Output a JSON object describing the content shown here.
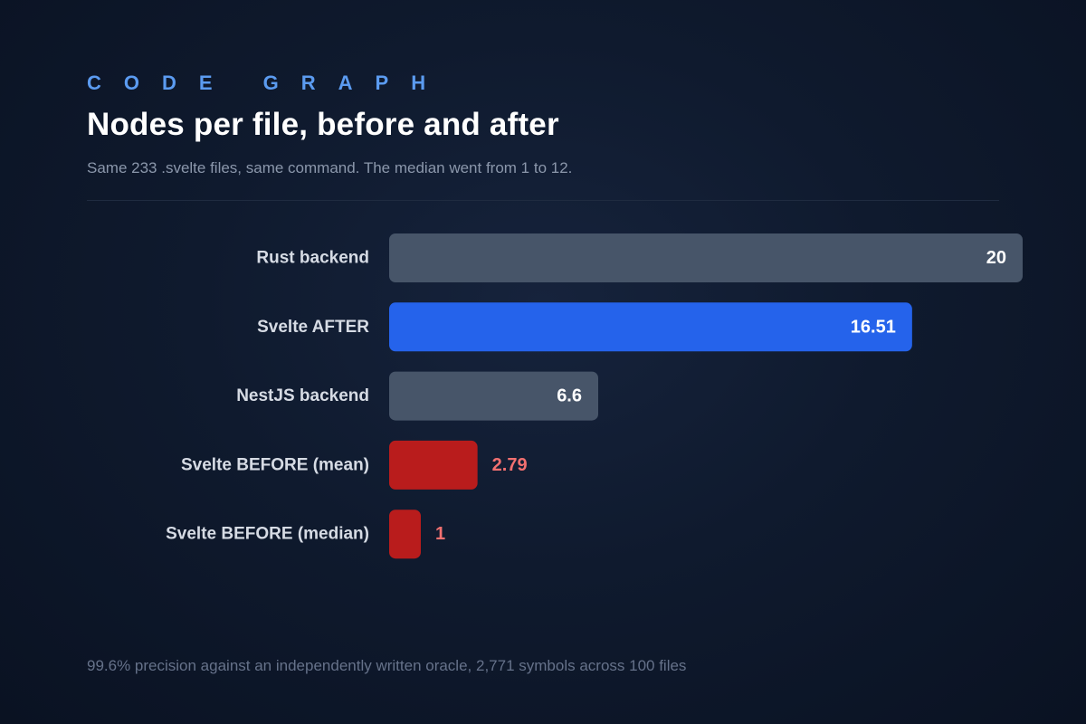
{
  "header": {
    "eyebrow": "CODE GRAPH",
    "title": "Nodes per file, before and after",
    "subtitle": "Same 233 .svelte files, same command. The median went from 1 to 12."
  },
  "footer": {
    "note": "99.6% precision against an independently written oracle, 2,771 symbols across 100 files"
  },
  "colors": {
    "neutral": "#475569",
    "highlight": "#2563eb",
    "before": "#b91c1c",
    "inside_label": "#ffffff",
    "outside_label": "#f27070",
    "category_label": "#d6dbe4"
  },
  "chart_data": {
    "type": "bar",
    "orientation": "horizontal",
    "categories": [
      "Rust backend",
      "Svelte AFTER",
      "NestJS backend",
      "Svelte BEFORE (mean)",
      "Svelte BEFORE (median)"
    ],
    "values": [
      20,
      16.51,
      6.6,
      2.79,
      1
    ],
    "value_labels": [
      "20",
      "16.51",
      "6.6",
      "2.79",
      "1"
    ],
    "bar_color_keys": [
      "neutral",
      "highlight",
      "neutral",
      "before",
      "before"
    ],
    "xlim": [
      0,
      20
    ],
    "grid": false,
    "legend": "none"
  }
}
